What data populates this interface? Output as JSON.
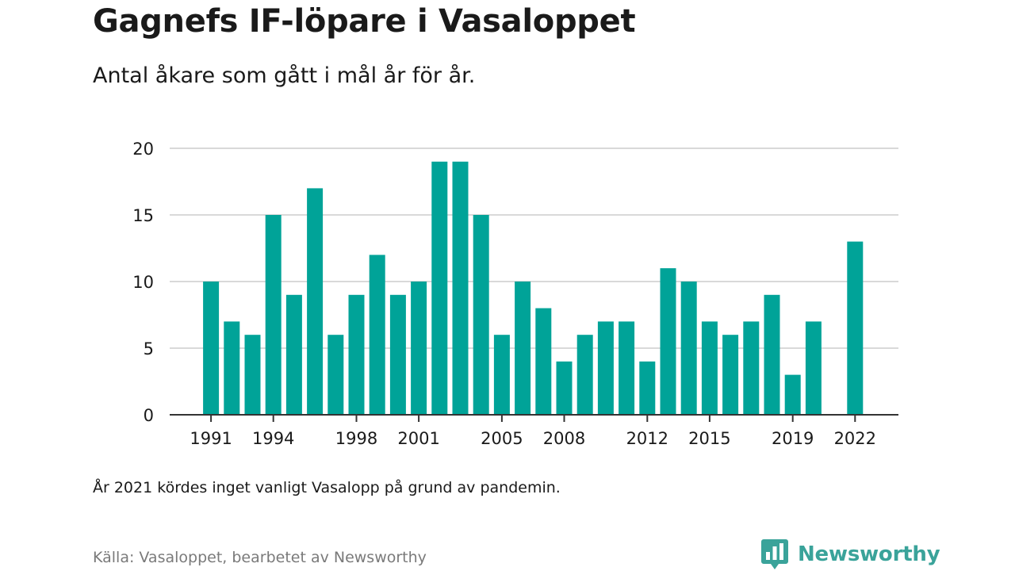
{
  "chart_data": {
    "type": "bar",
    "title": "Gagnefs IF-löpare i Vasaloppet",
    "subtitle": "Antal åkare som gått i mål år för år.",
    "xlabel": "",
    "ylabel": "",
    "ylim": [
      0,
      20
    ],
    "yticks": [
      0,
      5,
      10,
      15,
      20
    ],
    "grid": true,
    "color": "#00A398",
    "categories": [
      1991,
      1992,
      1993,
      1994,
      1995,
      1996,
      1997,
      1998,
      1999,
      2000,
      2001,
      2002,
      2003,
      2004,
      2005,
      2006,
      2007,
      2008,
      2009,
      2010,
      2011,
      2012,
      2013,
      2014,
      2015,
      2016,
      2017,
      2018,
      2019,
      2020,
      2021,
      2022
    ],
    "values": [
      10,
      7,
      6,
      15,
      9,
      17,
      6,
      9,
      12,
      9,
      10,
      19,
      19,
      15,
      6,
      10,
      8,
      4,
      6,
      7,
      7,
      4,
      11,
      10,
      7,
      6,
      7,
      9,
      3,
      7,
      null,
      13
    ],
    "xtick_labels": [
      "1991",
      "1994",
      "1998",
      "2001",
      "2005",
      "2008",
      "2012",
      "2015",
      "2019",
      "2022"
    ]
  },
  "note": "År 2021 kördes inget vanligt Vasalopp på grund av pandemin.",
  "source": "Källa: Vasaloppet, bearbetet av Newsworthy",
  "brand": {
    "name": "Newsworthy",
    "color": "#3aa39a",
    "icon": "newsworthy-logo-icon"
  }
}
